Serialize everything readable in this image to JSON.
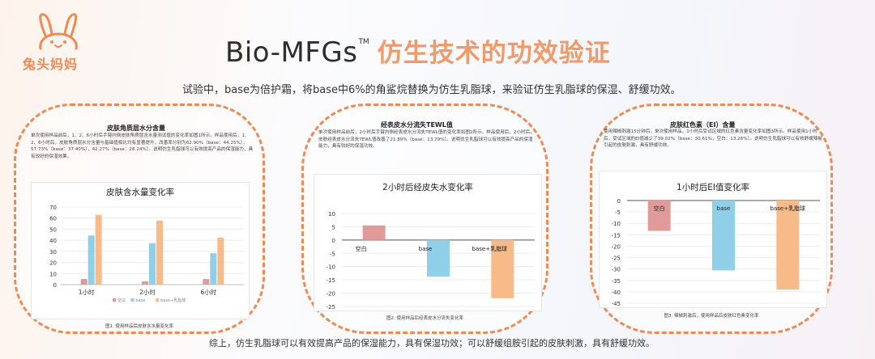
{
  "logo": {
    "text": "兔头妈妈"
  },
  "header": {
    "brand": "Bio-MFGs",
    "trademark": "TM",
    "title": "仿生技术的功效验证",
    "intro": "试验中，base为倍护霜，将base中6%的角鲨烷替换为仿生乳脂球，来验证仿生乳脂球的保湿、舒缓功效。"
  },
  "panels": [
    {
      "title": "皮肤角质层水分含量",
      "desc": "单次使用样品前后，1、2、6小时后手臂内侧皮肤角质层含水量测试值的变化率如图1所示。样品使用后，1、2、6小时后，皮肤角质层水分含量与基础值相比均有显著提升，改善率分别为62.90%（base：44.25%），57.73%（base：37.40%），42.27%（base：28.24%）。说明仿生乳脂球可以有效提高产品的保湿能力，具有较好的保湿效果。",
      "caption": "图1. 使用样品后皮肤含水量变化率"
    },
    {
      "title": "经表皮水分流失TEWL值",
      "desc": "单次使用样品前后，2小时后手臂内侧经表皮水分流失TEWL值的变化率如图2所示。样品使用后，2小时后，皮肤经表皮水分流失TEWL值改善了21.89%（base：13.79%）。说明仿生乳脂球可以有效提高产品的保湿能力，具有较好的保湿功效。",
      "caption": "图2. 使用样品后经表皮水分流失变化率"
    },
    {
      "title": "皮肤红色素（EI）含量",
      "desc": "使用辣椒刺激15分钟后，单次使用样品，1小时后受试区域的红色素含量变化率如图3所示。样品使用1小时后，受试区域的EI值减少了39.02%（base：30.61%，空白：13.26%）。说明仿生乳脂球可以有效舒缓辣椒引起的皮肤刺激，具有舒缓功效。",
      "caption": "图3. 辣椒刺激后，使用样品后皮肤红色素变化率"
    }
  ],
  "chart_data": [
    {
      "type": "bar",
      "title": "皮肤含水量变化率",
      "categories": [
        "1小时",
        "2小时",
        "6小时"
      ],
      "series": [
        {
          "name": "空白",
          "values": [
            5,
            3,
            5
          ],
          "color": "#e09a9a"
        },
        {
          "name": "base",
          "values": [
            44.25,
            37.4,
            28.24
          ],
          "color": "#8fcfe8"
        },
        {
          "name": "base+乳脂球",
          "values": [
            62.9,
            57.73,
            42.27
          ],
          "color": "#f7bb8a"
        }
      ],
      "ylim": [
        0,
        70
      ],
      "yticks": [
        0,
        10,
        20,
        30,
        40,
        50,
        60,
        70
      ],
      "legend": "bottom"
    },
    {
      "type": "bar",
      "title": "2小时后经皮失水变化率",
      "categories": [
        "空白",
        "base",
        "base+乳脂球"
      ],
      "values": [
        5.5,
        -13.79,
        -21.89
      ],
      "colors": [
        "#e09a9a",
        "#8fcfe8",
        "#f7bb8a"
      ],
      "ylim": [
        -25,
        10
      ],
      "yticks": [
        10,
        5,
        0,
        -5,
        -10,
        -15,
        -20,
        -25
      ]
    },
    {
      "type": "bar",
      "title": "1小时后EI值变化率",
      "categories": [
        "空白",
        "base",
        "base+乳脂球"
      ],
      "values": [
        -13.26,
        -30.61,
        -39.02
      ],
      "colors": [
        "#e09a9a",
        "#8fcfe8",
        "#f7bb8a"
      ],
      "ylim": [
        -45,
        0
      ],
      "yticks": [
        0,
        -5,
        -10,
        -15,
        -20,
        -25,
        -30,
        -35,
        -40,
        -45
      ]
    }
  ],
  "footer": "综上，仿生乳脂球可以有效提高产品的保湿能力，具有保湿功效；可以舒缓组胺引起的皮肤刺激，具有舒缓功效。"
}
